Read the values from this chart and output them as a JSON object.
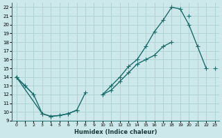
{
  "xlabel": "Humidex (Indice chaleur)",
  "bg_color": "#cde8ea",
  "grid_color": "#b0d4d6",
  "line_color": "#1a6b6b",
  "xlim": [
    -0.5,
    23.5
  ],
  "ylim": [
    9,
    22.5
  ],
  "yticks": [
    9,
    10,
    11,
    12,
    13,
    14,
    15,
    16,
    17,
    18,
    19,
    20,
    21,
    22
  ],
  "xticks": [
    0,
    1,
    2,
    3,
    4,
    5,
    6,
    7,
    8,
    9,
    10,
    11,
    12,
    13,
    14,
    15,
    16,
    17,
    18,
    19,
    20,
    21,
    22,
    23
  ],
  "line1_x": [
    0,
    1,
    2,
    3,
    4,
    5,
    6,
    7,
    8,
    9,
    10,
    11,
    12,
    13,
    14,
    15,
    16,
    17,
    18,
    19,
    20,
    21,
    22,
    23
  ],
  "line1_y": [
    14.0,
    13.0,
    12.0,
    null,
    null,
    null,
    null,
    null,
    null,
    null,
    12.0,
    12.5,
    13.5,
    14.5,
    15.5,
    16.0,
    16.5,
    17.5,
    18.0,
    null,
    null,
    null,
    null,
    15.0
  ],
  "line2_x": [
    0,
    1,
    2,
    3,
    4,
    5,
    6,
    7,
    8,
    9,
    10,
    11,
    12,
    13,
    14,
    15,
    16,
    17,
    18,
    19,
    20,
    21,
    22
  ],
  "line2_y": [
    14.0,
    13.0,
    12.0,
    9.8,
    9.5,
    9.6,
    9.8,
    10.2,
    12.2,
    null,
    12.0,
    13.0,
    14.0,
    15.2,
    16.0,
    17.5,
    19.2,
    20.5,
    22.0,
    21.8,
    20.0,
    17.5,
    15.0
  ],
  "line3_x": [
    0,
    3,
    4,
    5,
    6,
    7,
    8,
    9,
    10,
    11,
    12,
    13,
    14,
    15,
    16,
    17,
    18,
    19,
    20
  ],
  "line3_y": [
    14.0,
    9.8,
    9.5,
    9.6,
    9.8,
    10.2,
    null,
    null,
    null,
    null,
    null,
    null,
    null,
    null,
    null,
    null,
    null,
    null,
    21.0
  ]
}
